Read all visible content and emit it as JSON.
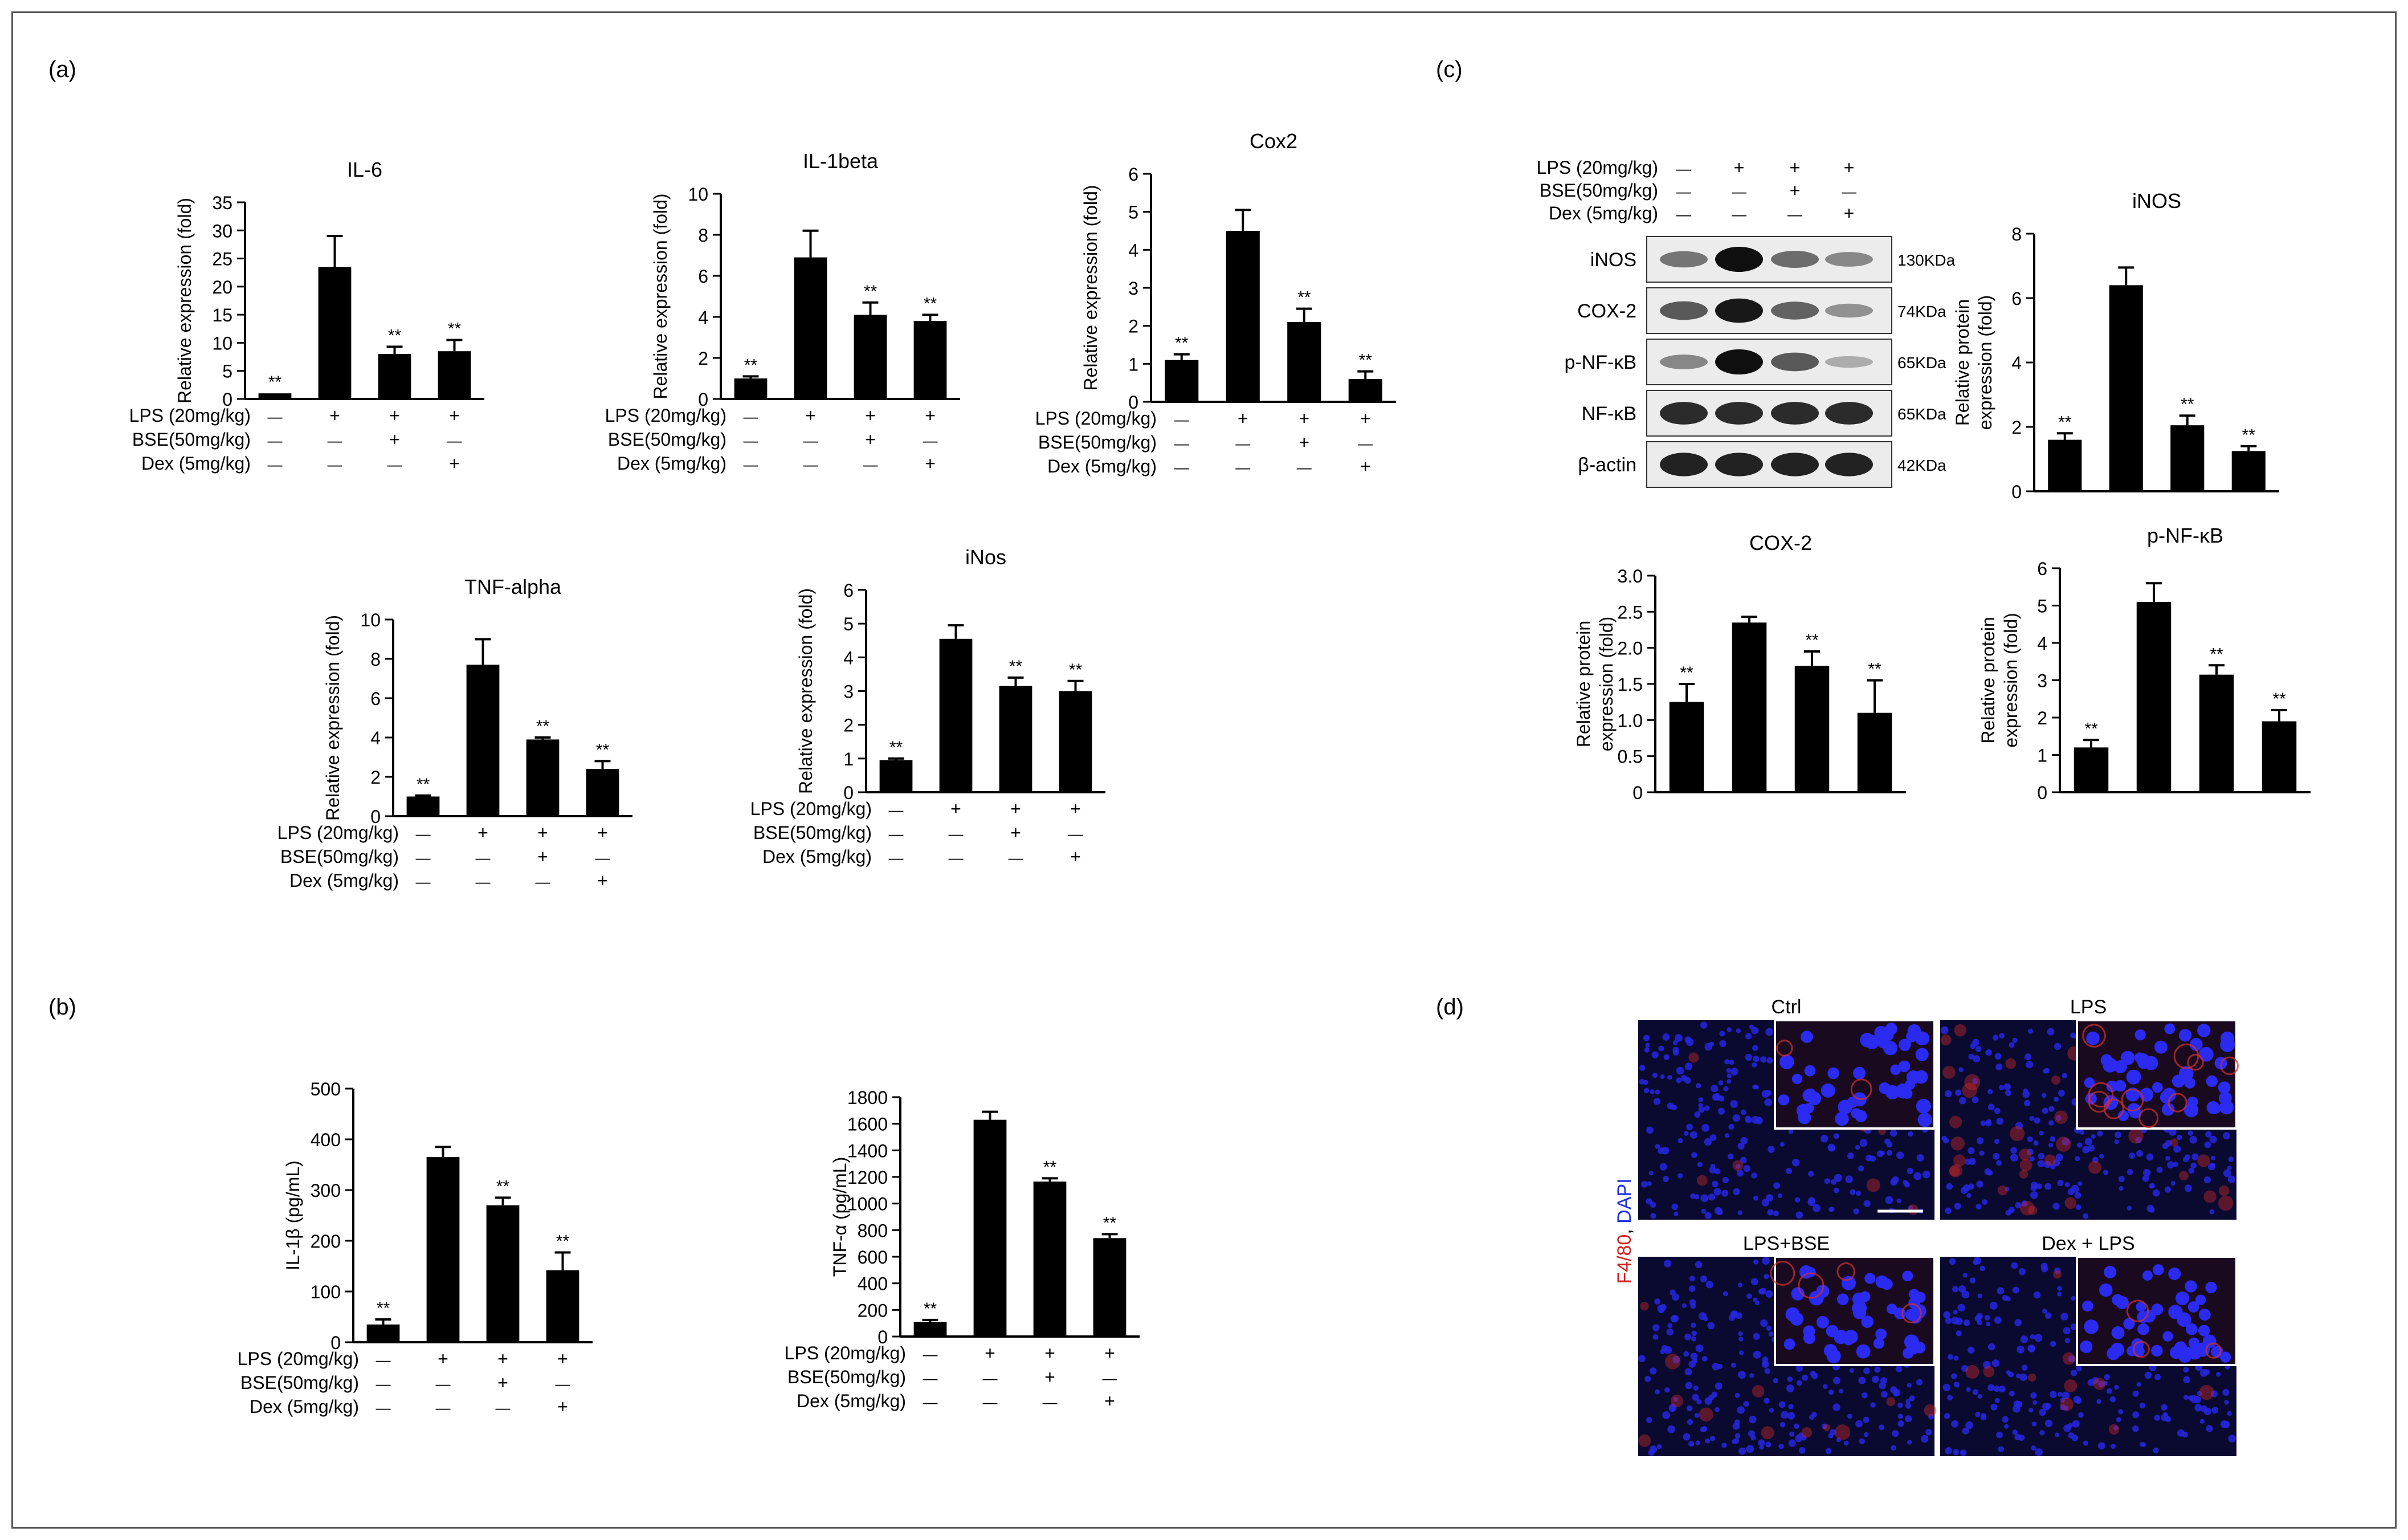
{
  "panel_labels": [
    "(a)",
    "(b)",
    "(c)",
    "(d)"
  ],
  "treatments": {
    "lps_label_a": "LPS (20mg/kg)",
    "bse_label_a": "BSE(50mg/kg)",
    "dex_label_a": "Dex (5mg/kg)",
    "lps_label_c": "LPS (20mg/kg)",
    "bse_label_c": "BSE(50mg/kg)",
    "dex_label_c": "Dex (5mg/kg)",
    "lps": [
      "—",
      "+",
      "+",
      "+"
    ],
    "bse": [
      "—",
      "—",
      "+",
      "—"
    ],
    "dex": [
      "—",
      "—",
      "—",
      "+"
    ]
  },
  "chart_data": [
    {
      "type": "bar",
      "panel": "a",
      "title": "IL-6",
      "ylabel": "Relative expression (fold)",
      "categories": [
        "1",
        "2",
        "3",
        "4"
      ],
      "values": [
        1,
        23.5,
        8,
        8.5
      ],
      "errors": [
        0,
        5.5,
        1.3,
        2
      ],
      "sig": [
        "**",
        "",
        "**",
        "**"
      ],
      "ylim": [
        0,
        35
      ],
      "yticks": [
        0,
        5,
        10,
        15,
        20,
        25,
        30,
        35
      ]
    },
    {
      "type": "bar",
      "panel": "a",
      "title": "IL-1beta",
      "ylabel": "Relative expression (fold)",
      "categories": [
        "1",
        "2",
        "3",
        "4"
      ],
      "values": [
        1,
        6.9,
        4.1,
        3.8
      ],
      "errors": [
        0.1,
        1.3,
        0.6,
        0.3
      ],
      "sig": [
        "**",
        "",
        "**",
        "**"
      ],
      "ylim": [
        0,
        10
      ],
      "yticks": [
        0,
        2,
        4,
        6,
        8,
        10
      ]
    },
    {
      "type": "bar",
      "panel": "a",
      "title": "Cox2",
      "ylabel": "Relative expression (fold)",
      "categories": [
        "1",
        "2",
        "3",
        "4"
      ],
      "values": [
        1.1,
        4.5,
        2.1,
        0.6
      ],
      "errors": [
        0.15,
        0.55,
        0.35,
        0.2
      ],
      "sig": [
        "**",
        "",
        "**",
        "**"
      ],
      "ylim": [
        0,
        6
      ],
      "yticks": [
        0,
        1,
        2,
        3,
        4,
        5,
        6
      ]
    },
    {
      "type": "bar",
      "panel": "a",
      "title": "TNF-alpha",
      "ylabel": "Relative expression (fold)",
      "categories": [
        "1",
        "2",
        "3",
        "4"
      ],
      "values": [
        1,
        7.7,
        3.9,
        2.4
      ],
      "errors": [
        0.05,
        1.3,
        0.1,
        0.4
      ],
      "sig": [
        "**",
        "",
        "**",
        "**"
      ],
      "ylim": [
        0,
        10
      ],
      "yticks": [
        0,
        2,
        4,
        6,
        8,
        10
      ]
    },
    {
      "type": "bar",
      "panel": "a",
      "title": "iNos",
      "ylabel": "Relative expression (fold)",
      "categories": [
        "1",
        "2",
        "3",
        "4"
      ],
      "values": [
        0.95,
        4.55,
        3.15,
        3.0
      ],
      "errors": [
        0.05,
        0.4,
        0.25,
        0.3
      ],
      "sig": [
        "**",
        "",
        "**",
        "**"
      ],
      "ylim": [
        0,
        6
      ],
      "yticks": [
        0,
        1,
        2,
        3,
        4,
        5,
        6
      ]
    },
    {
      "type": "bar",
      "panel": "b",
      "title": "",
      "ylabel": "IL-1β (pg/mL)",
      "categories": [
        "1",
        "2",
        "3",
        "4"
      ],
      "values": [
        35,
        365,
        270,
        142
      ],
      "errors": [
        10,
        20,
        15,
        35
      ],
      "sig": [
        "**",
        "",
        "**",
        "**"
      ],
      "ylim": [
        0,
        500
      ],
      "yticks": [
        0,
        100,
        200,
        300,
        400,
        500
      ]
    },
    {
      "type": "bar",
      "panel": "b",
      "title": "",
      "ylabel": "TNF-α (pg/mL)",
      "categories": [
        "1",
        "2",
        "3",
        "4"
      ],
      "values": [
        110,
        1630,
        1165,
        740
      ],
      "errors": [
        15,
        60,
        25,
        30
      ],
      "sig": [
        "**",
        "",
        "**",
        "**"
      ],
      "ylim": [
        0,
        1800
      ],
      "yticks": [
        0,
        200,
        400,
        600,
        800,
        1000,
        1200,
        1400,
        1600,
        1800
      ]
    },
    {
      "type": "bar",
      "panel": "c",
      "title": "iNOS",
      "ylabel": "Relative protein expression (fold)",
      "categories": [
        "1",
        "2",
        "3",
        "4"
      ],
      "values": [
        1.6,
        6.4,
        2.05,
        1.25
      ],
      "errors": [
        0.2,
        0.55,
        0.3,
        0.15
      ],
      "sig": [
        "**",
        "",
        "**",
        "**"
      ],
      "ylim": [
        0,
        8
      ],
      "yticks": [
        0,
        2,
        4,
        6,
        8
      ]
    },
    {
      "type": "bar",
      "panel": "c",
      "title": "COX-2",
      "ylabel": "Relative protein expression (fold)",
      "categories": [
        "1",
        "2",
        "3",
        "4"
      ],
      "values": [
        1.25,
        2.35,
        1.75,
        1.1
      ],
      "errors": [
        0.25,
        0.08,
        0.2,
        0.45
      ],
      "sig": [
        "**",
        "",
        "**",
        "**"
      ],
      "ylim": [
        0,
        3.0
      ],
      "yticks": [
        0,
        0.5,
        1.0,
        1.5,
        2.0,
        2.5,
        3.0
      ],
      "yticklabels": [
        "0",
        "0.5",
        "1.0",
        "1.5",
        "2.0",
        "2.5",
        "3.0"
      ]
    },
    {
      "type": "bar",
      "panel": "c",
      "title": "p-NF-κB",
      "ylabel": "Relative protein expression (fold)",
      "categories": [
        "1",
        "2",
        "3",
        "4"
      ],
      "values": [
        1.2,
        5.1,
        3.15,
        1.9
      ],
      "errors": [
        0.2,
        0.5,
        0.25,
        0.3
      ],
      "sig": [
        "**",
        "",
        "**",
        "**"
      ],
      "ylim": [
        0,
        6
      ],
      "yticks": [
        0,
        1,
        2,
        3,
        4,
        5,
        6
      ]
    }
  ],
  "western_blot": {
    "rows": [
      {
        "label": "iNOS",
        "kda": "130KDa",
        "intensity": [
          0.45,
          1.0,
          0.5,
          0.35
        ]
      },
      {
        "label": "COX-2",
        "kda": "74KDa",
        "intensity": [
          0.6,
          0.95,
          0.55,
          0.3
        ]
      },
      {
        "label": "p-NF-κB",
        "kda": "65KDa",
        "intensity": [
          0.35,
          1.0,
          0.6,
          0.15
        ]
      },
      {
        "label": "NF-κB",
        "kda": "65KDa",
        "intensity": [
          0.85,
          0.85,
          0.85,
          0.85
        ]
      },
      {
        "label": "β-actin",
        "kda": "42KDa",
        "intensity": [
          0.9,
          0.9,
          0.9,
          0.9
        ]
      }
    ]
  },
  "microscopy": {
    "stain_label_red": "F4/80",
    "stain_label_sep": ", ",
    "stain_label_blue": "DAPI",
    "panels": [
      "Ctrl",
      "LPS",
      "LPS+BSE",
      "Dex + LPS"
    ],
    "red_intensity": [
      0.15,
      0.7,
      0.3,
      0.2
    ]
  }
}
